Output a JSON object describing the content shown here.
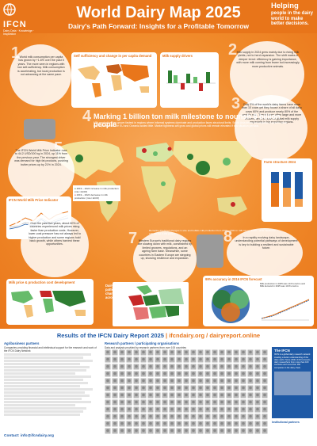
{
  "header": {
    "logo_mark": "IFCN",
    "logo_tagline": "Dairy Data · Knowledge · Inspiration",
    "title": "World Dairy Map 2025",
    "subtitle": "Dairy's Path Forward: Insights for a Profitable Tomorrow",
    "helping_title": "Helping",
    "helping_text": "people in the dairy world to make better decisions."
  },
  "panels": {
    "self_sufficiency_title": "Self sufficiency and change in per capita demand",
    "milk_supply_title": "Milk supply drivers",
    "farm_structure_title": "Farm structure 2024",
    "price_indicator_title": "IFCN World Milk Price Indicator",
    "cost_development_title": "Milk price & production cost development",
    "dairy_patterns_title": "Dairy production patterns are changing, also across Europe",
    "forecast_title": "99% accuracy in 2016 IFCN forecast",
    "mp_forecast_label": "Milk production in 2025 was 10.9 tons/mo and",
    "mp_demand_label": "Milk demand in 2025 was 10.8 tons/mo"
  },
  "notes": {
    "n1": "World milk consumption per capita has grown by +1.6% over the past 5 years. The more seen in regions with low self-sufficiency. Milk consumption is accelerating, but local production is not advancing at the same pace.",
    "n2": "Milk supply in 2024 grew mainly due to rising milk yields, not to herd expansion. The shift marks a deeper trend: efficiency is gaining importance, with more milk coming from fewer but increasingly more productive animals.",
    "n3": "Only 3% of the world's dairy farms have more than 10 cows yet they house a share of all dairy cows 60% and produce nearly 80% of the world's milk. These farms often large and more efficient, are the heart of global milk supply especially in big exporting regions.",
    "n4_title": "Marking 1 billion ton milk milestone to nourish 8 billion people",
    "n4_text": "Milk production has grown fastest in regions where informal systems dominate and production faces structural limits. South Asia drives the majority of growth, while key exporters like the EU and Oceania added little. Market tightness will grow and global prices will remain elevated if this situation persists.",
    "n5": "The IFCN World Milk Price Indicator rose to 44.2 USD/100 kg in 2024, up 11% from the previous year. The strongest driver was demand for high fat products, pushing butter prices up by 21% in 2024.",
    "n6": "Over the past five years, about 60% of countries experienced milk prices rising faster than production costs. However, lower-cost pressure has not always led to higher production and some regions hold back growth, while others harvest these opportunities.",
    "n7": "Western Europe's traditional dairy regions are slowing down with milk, constrained by limited growers, regulations, and an ageing farm base. Meanwhile, some countries in Eastern Europe are stepping up, showing resilience and expansion.",
    "n8": "In a rapidly evolving dairy landscape, understanding potential pathways of development is key to building a resilient and sustainable future."
  },
  "map": {
    "remarks": "Remarks: Predicted changes in size and buffalo milk production from 2019 – 2024 in milk tonnes ECM – units measured with 4% fat, 3.3% protein",
    "legend_growth": "2019 – 2024 increase in milk production (mio t ECM)",
    "legend_decline": "2019 – 2024 decrease in milk production (mio t ECM)"
  },
  "footer": {
    "results_prefix": "Results of the IFCN Dairy Report 2025",
    "results_links": "ifcndairy.org / dairyreport.online",
    "agribusiness_title": "Agribusiness partners",
    "agribusiness_text": "Companies providing financial and intellectual support for the research and work of the IFCN Dairy Network",
    "research_title": "Research partners / participating organisations",
    "research_text": "Data and analysis provided by research partners from over 100 countries",
    "ifcn_title": "The IFCN",
    "ifcn_text": "IFCN is a global dairy research network creating a better understanding of the dairy world. Since 2000, IFCN connects dairy researchers from more than 100 countries and more than 160 companies in the dairy chain.",
    "institutional_title": "Institutional partners",
    "contact": "Contact: info@ifcndairy.org"
  },
  "colors": {
    "orange": "#e8751a",
    "blue": "#1f5aa6",
    "green_dark": "#2e7d32",
    "red_dark": "#b71c1c"
  }
}
